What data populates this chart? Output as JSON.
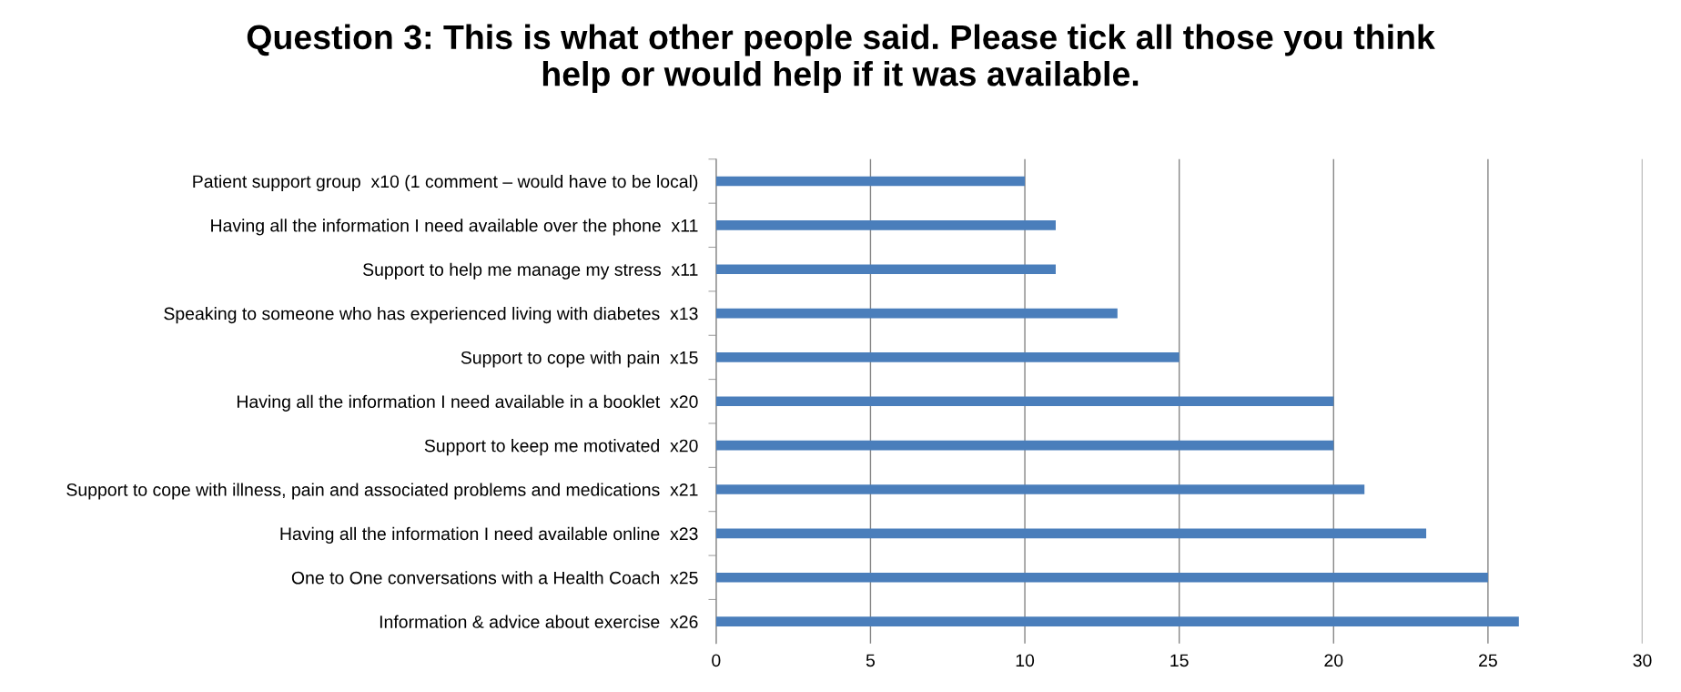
{
  "chart_data": {
    "type": "bar",
    "orientation": "horizontal",
    "title": "Question 3: This is what other people said. Please tick all those you think\nhelp or would help if it was available.",
    "categories": [
      "Patient support group  x10 (1 comment – would have to be local)",
      "Having all the information I need available over the phone  x11",
      "Support to help me manage my stress  x11",
      "Speaking to someone who has experienced living with diabetes  x13",
      "Support to cope with pain  x15",
      "Having all the information I need available in a booklet  x20",
      "Support to keep me motivated  x20",
      "Support to cope with illness, pain and associated problems and medications  x21",
      "Having all the information I need available online  x23",
      "One to One conversations with a Health Coach  x25",
      "Information & advice about exercise  x26"
    ],
    "values": [
      10,
      11,
      11,
      13,
      15,
      20,
      20,
      21,
      23,
      25,
      26
    ],
    "color": "#4a7ebb",
    "xlim": [
      0,
      30
    ],
    "xticks": [
      0,
      5,
      10,
      15,
      20,
      25,
      30
    ],
    "grid": "x",
    "legend": false
  }
}
